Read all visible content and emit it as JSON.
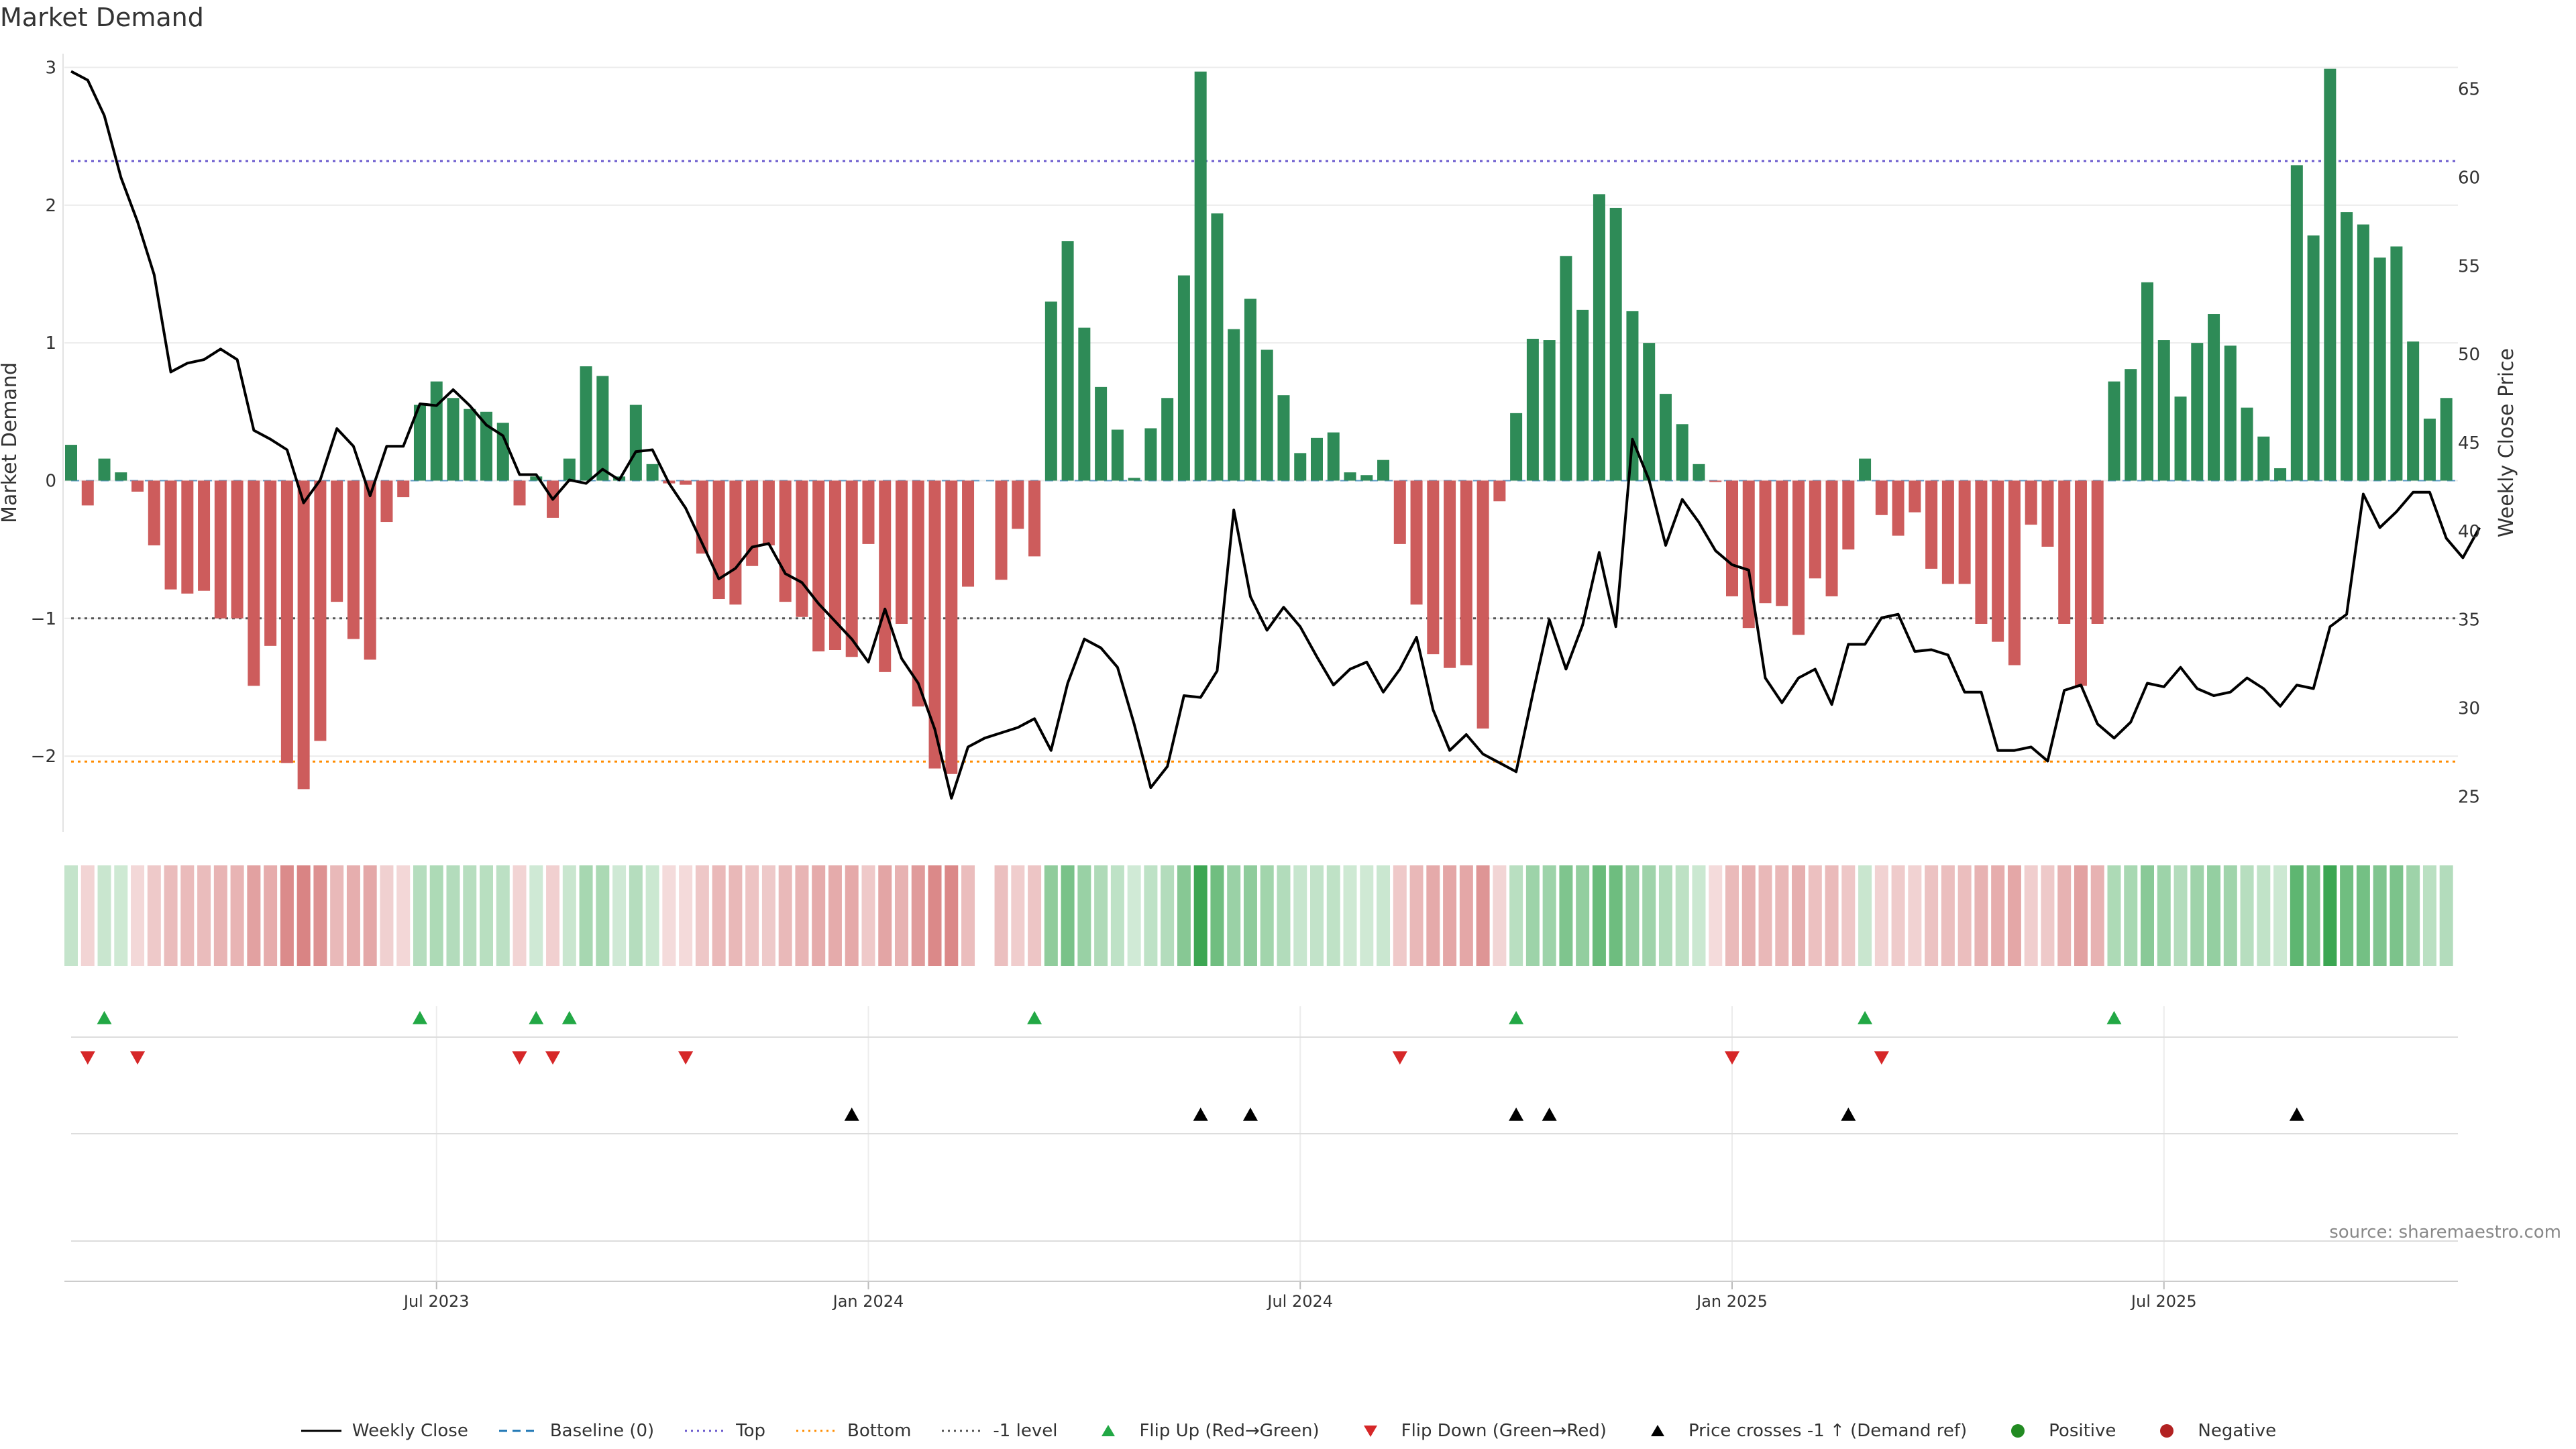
{
  "title": "Market Demand",
  "source": "source: sharemaestro.com",
  "colors": {
    "pos": "#2e8b57",
    "neg": "#cd5c5c",
    "price": "#000000",
    "top": "#6a5acd",
    "bottom": "#ff8c00",
    "minus1": "#555555",
    "flip_up": "#22a845",
    "flip_down": "#d62728",
    "cross": "#000000",
    "positive_dot": "#228b22",
    "negative_dot": "#b22222"
  },
  "legend": [
    {
      "label": "Weekly Close",
      "kind": "line",
      "color": "#000000"
    },
    {
      "label": "Baseline (0)",
      "kind": "dash",
      "color": "#1f77b4"
    },
    {
      "label": "Top",
      "kind": "dot",
      "color": "#6a5acd"
    },
    {
      "label": "Bottom",
      "kind": "dot",
      "color": "#ff8c00"
    },
    {
      "label": "-1 level",
      "kind": "dot",
      "color": "#555555"
    },
    {
      "label": "Flip Up (Red→Green)",
      "kind": "tri-up",
      "color": "#22a845"
    },
    {
      "label": "Flip Down (Green→Red)",
      "kind": "tri-down",
      "color": "#d62728"
    },
    {
      "label": "Price crosses -1 ↑ (Demand ref)",
      "kind": "tri-up",
      "color": "#000000"
    },
    {
      "label": "Positive",
      "kind": "circle",
      "color": "#228b22"
    },
    {
      "label": "Negative",
      "kind": "circle",
      "color": "#b22222"
    }
  ],
  "chart_data": {
    "type": "bar",
    "title": "Market Demand",
    "ylabel": "Market Demand",
    "y2label": "Weekly Close Price",
    "ylim": [
      -2.55,
      3.1
    ],
    "y2lim": [
      23,
      67
    ],
    "yticks": [
      3,
      2,
      1,
      0,
      -1,
      -2
    ],
    "ytick_labels": [
      "3",
      "2",
      "1",
      "0",
      "−1",
      "−2"
    ],
    "y2ticks": [
      65,
      60,
      55,
      50,
      45,
      40,
      35,
      30,
      25
    ],
    "top_level": 2.32,
    "bottom_level": -2.04,
    "minus1_level": -1,
    "weeks": 144,
    "xtick_week_index": [
      22,
      48,
      74,
      100,
      126
    ],
    "xtick_labels": [
      "Jul 2023",
      "Jan 2024",
      "Jul 2024",
      "Jan 2025",
      "Jul 2025"
    ],
    "series": [
      {
        "name": "Market Demand",
        "values": [
          0.26,
          -0.18,
          0.16,
          0.06,
          -0.08,
          -0.47,
          -0.79,
          -0.82,
          -0.8,
          -1.0,
          -1.0,
          -1.49,
          -1.2,
          -2.05,
          -2.24,
          -1.89,
          -0.88,
          -1.15,
          -1.3,
          -0.3,
          -0.12,
          0.55,
          0.72,
          0.6,
          0.52,
          0.5,
          0.42,
          -0.18,
          0.03,
          -0.27,
          0.16,
          0.83,
          0.76,
          0.03,
          0.55,
          0.12,
          -0.02,
          -0.03,
          -0.53,
          -0.86,
          -0.9,
          -0.62,
          -0.47,
          -0.88,
          -0.99,
          -1.24,
          -1.23,
          -1.28,
          -0.46,
          -1.39,
          -1.04,
          -1.64,
          -2.09,
          -2.13,
          -0.77,
          0,
          -0.72,
          -0.35,
          -0.55,
          1.3,
          1.74,
          1.11,
          0.68,
          0.37,
          0.02,
          0.38,
          0.6,
          1.49,
          2.97,
          1.94,
          1.1,
          1.32,
          0.95,
          0.62,
          0.2,
          0.31,
          0.35,
          0.06,
          0.04,
          0.15,
          -0.46,
          -0.9,
          -1.26,
          -1.36,
          -1.34,
          -1.8,
          -0.15,
          0.49,
          1.03,
          1.02,
          1.63,
          1.24,
          2.08,
          1.98,
          1.23,
          1.0,
          0.63,
          0.41,
          0.12,
          -0.01,
          -0.84,
          -1.07,
          -0.89,
          -0.91,
          -1.12,
          -0.71,
          -0.84,
          -0.5,
          0.16,
          -0.25,
          -0.4,
          -0.23,
          -0.64,
          -0.75,
          -0.75,
          -1.04,
          -1.17,
          -1.34,
          -0.32,
          -0.48,
          -1.04,
          -1.49,
          -1.04,
          0.72,
          0.81,
          1.44,
          1.02,
          0.61,
          1.0,
          1.21,
          0.98,
          0.53,
          0.32,
          0.09,
          2.29,
          1.78,
          2.99,
          1.95,
          1.86,
          1.62,
          1.7,
          1.01,
          0.45,
          0.6
        ]
      },
      {
        "name": "Weekly Close",
        "values": [
          66,
          65.5,
          63.5,
          60,
          57.5,
          54.5,
          49,
          49.5,
          49.7,
          50.3,
          49.7,
          45.7,
          45.2,
          44.6,
          41.6,
          42.9,
          45.8,
          44.8,
          42,
          44.8,
          44.8,
          47.2,
          47.1,
          48,
          47.1,
          46,
          45.4,
          43.2,
          43.2,
          41.8,
          42.9,
          42.7,
          43.5,
          42.9,
          44.5,
          44.6,
          42.7,
          41.3,
          39.3,
          37.3,
          37.9,
          39.1,
          39.3,
          37.6,
          37.1,
          35.9,
          34.9,
          33.9,
          32.6,
          35.6,
          32.8,
          31.4,
          28.8,
          24.9,
          27.8,
          28.3,
          28.6,
          28.9,
          29.4,
          27.6,
          31.4,
          33.9,
          33.4,
          32.3,
          29.1,
          25.5,
          26.7,
          30.7,
          30.6,
          32.1,
          41.2,
          36.3,
          34.4,
          35.7,
          34.6,
          32.9,
          31.3,
          32.2,
          32.6,
          30.9,
          32.2,
          34,
          29.9,
          27.6,
          28.5,
          27.4,
          26.9,
          26.4,
          30.8,
          35,
          32.2,
          34.7,
          38.8,
          34.6,
          45.2,
          42.9,
          39.2,
          41.8,
          40.5,
          38.9,
          38.1,
          37.8,
          31.7,
          30.3,
          31.7,
          32.2,
          30.2,
          33.6,
          33.6,
          35.1,
          35.3,
          33.2,
          33.3,
          33,
          30.9,
          30.9,
          27.6,
          27.6,
          27.8,
          27,
          31,
          31.3,
          29.1,
          28.3,
          29.2,
          31.4,
          31.2,
          32.3,
          31.1,
          30.7,
          30.9,
          31.7,
          31.1,
          30.1,
          31.3,
          31.1,
          34.6,
          35.3,
          42.1,
          40.2,
          41.1,
          42.2,
          42.2,
          39.6,
          38.5,
          40.2
        ]
      }
    ],
    "flip_up_weeks": [
      2,
      21,
      28,
      30,
      58,
      87,
      108,
      123
    ],
    "flip_down_weeks": [
      1,
      4,
      27,
      29,
      37,
      80,
      100,
      109
    ],
    "price_cross_weeks": [
      47,
      68,
      71,
      87,
      89,
      107,
      134
    ]
  }
}
